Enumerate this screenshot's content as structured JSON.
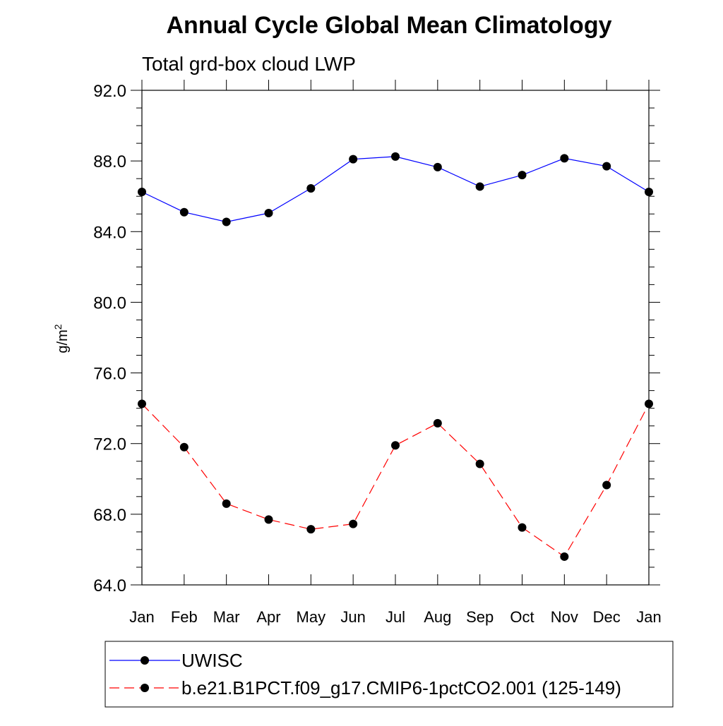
{
  "chart_data": {
    "type": "line",
    "title": "Annual Cycle Global Mean Climatology",
    "subtitle": "Total grd-box cloud LWP",
    "ylabel": "g/m",
    "ylabel_sup": "2",
    "xlabel": "",
    "categories": [
      "Jan",
      "Feb",
      "Mar",
      "Apr",
      "May",
      "Jun",
      "Jul",
      "Aug",
      "Sep",
      "Oct",
      "Nov",
      "Dec",
      "Jan"
    ],
    "ylim": [
      64.0,
      92.0
    ],
    "yticks": [
      "64.0",
      "68.0",
      "72.0",
      "76.0",
      "80.0",
      "84.0",
      "88.0",
      "92.0"
    ],
    "y_minor_step": 1.0,
    "grid": false,
    "legend_position": "bottom",
    "series": [
      {
        "name": "UWISC",
        "color": "#0000ff",
        "line_style": "solid",
        "marker": "circle",
        "values": [
          86.25,
          85.1,
          84.55,
          85.05,
          86.45,
          88.1,
          88.25,
          87.65,
          86.55,
          87.2,
          88.15,
          87.7,
          86.25
        ]
      },
      {
        "name": "b.e21.B1PCT.f09_g17.CMIP6-1pctCO2.001 (125-149)",
        "color": "#ff0000",
        "line_style": "dashed",
        "marker": "circle",
        "values": [
          74.25,
          71.8,
          68.6,
          67.7,
          67.15,
          67.45,
          71.9,
          73.15,
          70.85,
          67.25,
          65.6,
          69.65,
          74.25
        ]
      }
    ]
  }
}
